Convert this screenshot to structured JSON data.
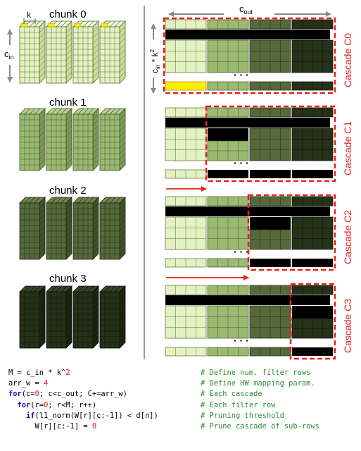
{
  "chunks": [
    {
      "label": "chunk 0",
      "fill": "#e4f2c3",
      "stroke": "#556b2f",
      "side": "#c9dc9c",
      "topface": "#f0f8dc"
    },
    {
      "label": "chunk 1",
      "fill": "#9cb972",
      "stroke": "#3e5423",
      "side": "#7d9856",
      "topface": "#b8d08f"
    },
    {
      "label": "chunk 2",
      "fill": "#55693a",
      "stroke": "#1d2a10",
      "side": "#3f5128",
      "topface": "#6e8450"
    },
    {
      "label": "chunk 3",
      "fill": "#253219",
      "stroke": "#0a1005",
      "side": "#1a2410",
      "topface": "#36452a"
    }
  ],
  "labels": {
    "k": "k",
    "c_in_base": "c",
    "c_in_sub": "in",
    "c_out_base": "c",
    "c_out_sub": "out",
    "rows_base": "c",
    "rows_sub": "in",
    "rows_rest": " * k",
    "rows_sup": "2",
    "ellipsis": "· · ·"
  },
  "cascades": [
    {
      "label": "Cascade C0",
      "start_block": 0
    },
    {
      "label": "Cascade C1",
      "start_block": 1
    },
    {
      "label": "Cascade C2",
      "start_block": 2
    },
    {
      "label": "Cascade C3",
      "start_block": 3
    }
  ],
  "colors": {
    "highlight": "#ffee00",
    "pruned": "#000000",
    "cascade_border": "#e8201a",
    "arrow": "#e8201a",
    "dim_arrow": "#888888"
  },
  "code": [
    {
      "parts": [
        {
          "t": "M = c_in * k^"
        },
        {
          "t": "2",
          "c": "num"
        }
      ],
      "comment": "# Define num. filter rows"
    },
    {
      "parts": [
        {
          "t": "arr_w = "
        },
        {
          "t": "4",
          "c": "num"
        }
      ],
      "comment": "# Define HW mapping param."
    },
    {
      "parts": [
        {
          "t": "for",
          "c": "kw"
        },
        {
          "t": "(c="
        },
        {
          "t": "0",
          "c": "num"
        },
        {
          "t": "; c<c_out; C+=arr_w)"
        }
      ],
      "comment": "# Each cascade"
    },
    {
      "parts": [
        {
          "t": "  "
        },
        {
          "t": "for",
          "c": "kw"
        },
        {
          "t": "(r="
        },
        {
          "t": "0",
          "c": "num"
        },
        {
          "t": "; r<M; r++)"
        }
      ],
      "comment": "# Each filter row"
    },
    {
      "parts": [
        {
          "t": "    "
        },
        {
          "t": "if",
          "c": "kw"
        },
        {
          "t": "(l1_norm(W[r][c:-1]) < d[n])"
        }
      ],
      "comment": "# Pruning threshold"
    },
    {
      "parts": [
        {
          "t": "      W[r][c:-1] = "
        },
        {
          "t": "0",
          "c": "num"
        }
      ],
      "comment": "# Prune cascade of sub-rows"
    }
  ]
}
